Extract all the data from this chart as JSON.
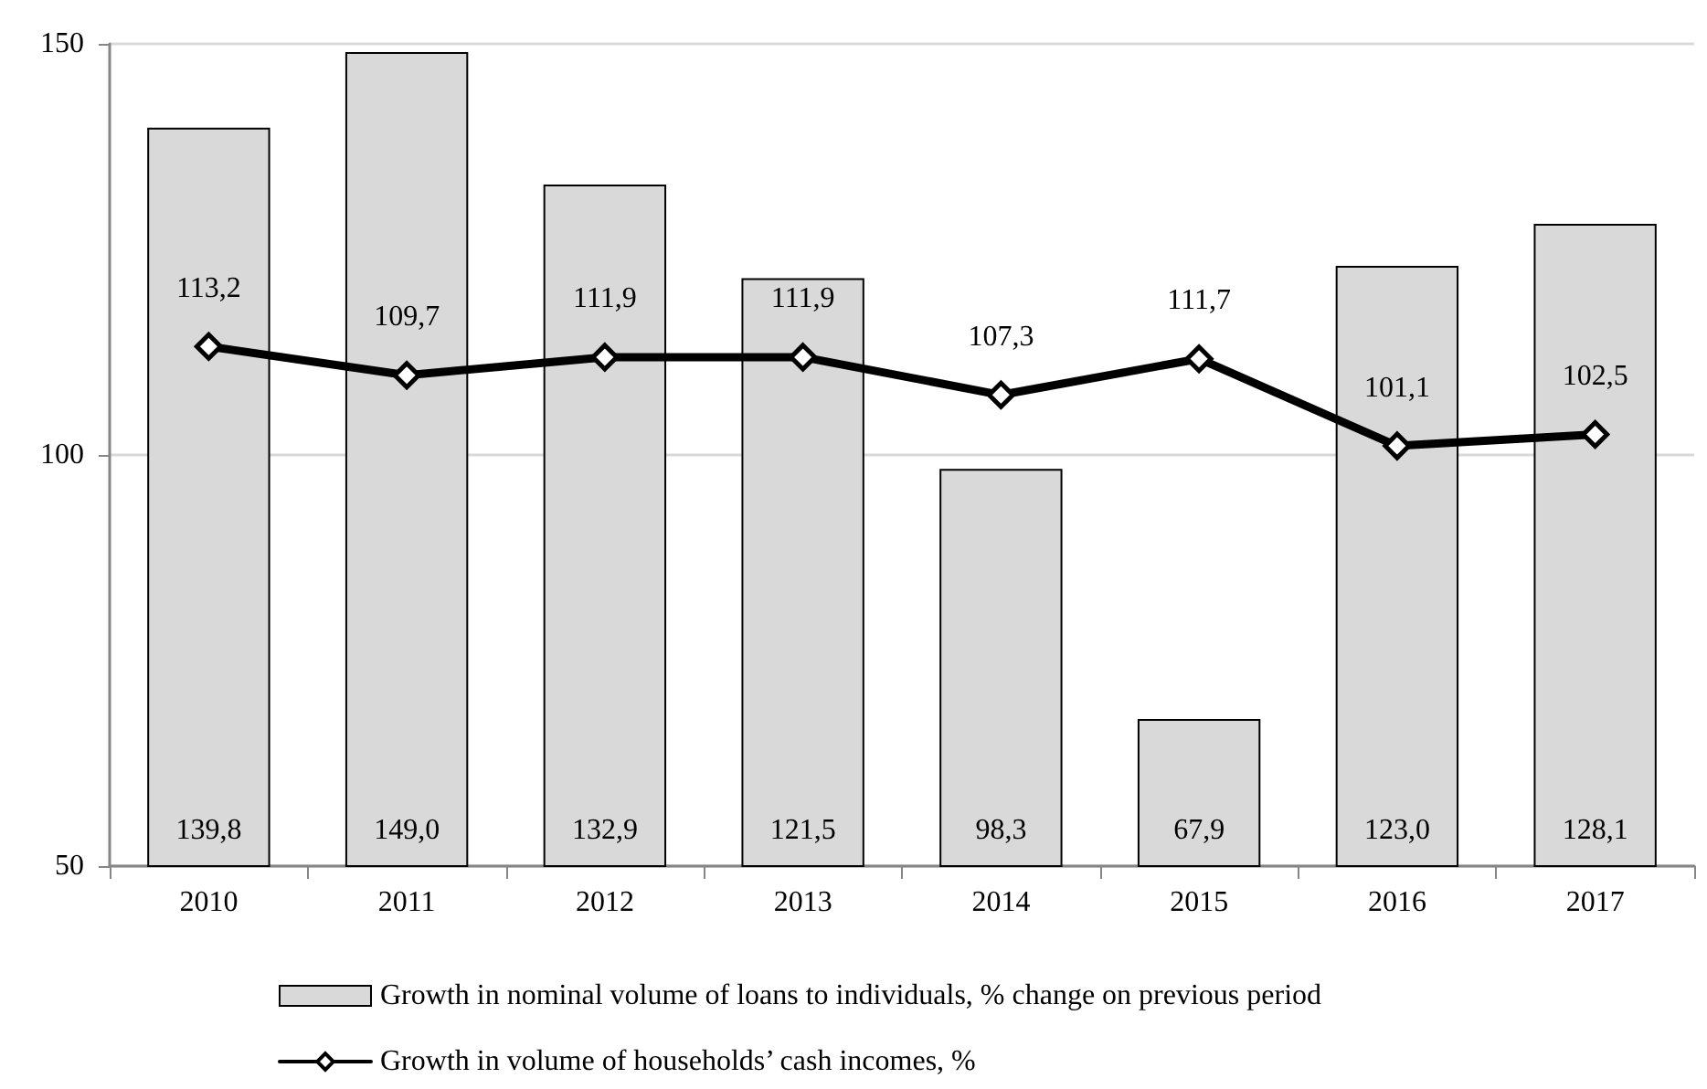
{
  "chart_data": {
    "type": "bar",
    "categories": [
      "2010",
      "2011",
      "2012",
      "2013",
      "2014",
      "2015",
      "2016",
      "2017"
    ],
    "series": [
      {
        "name": "Growth in nominal volume of loans to individuals, % change on previous period",
        "color": "#d9d9d9",
        "values": [
          139.8,
          149.0,
          132.9,
          121.5,
          98.3,
          67.9,
          123.0,
          128.1
        ],
        "value_labels": [
          "139,8",
          "149,0",
          "132,9",
          "121,5",
          "98,3",
          "67,9",
          "123,0",
          "128,1"
        ]
      },
      {
        "name": "Growth in volume of households’ cash incomes, %",
        "type": "line",
        "color": "#000000",
        "marker": "diamond",
        "line_style": "solid",
        "values": [
          113.2,
          109.7,
          111.9,
          111.9,
          107.3,
          111.7,
          101.1,
          102.5
        ],
        "value_labels": [
          "113,2",
          "109,7",
          "111,9",
          "111,9",
          "107,3",
          "111,7",
          "101,1",
          "102,5"
        ]
      }
    ],
    "ylim": [
      50,
      150
    ],
    "yticks": [
      50,
      100,
      150
    ],
    "grid": "y",
    "legend": "bottom"
  }
}
